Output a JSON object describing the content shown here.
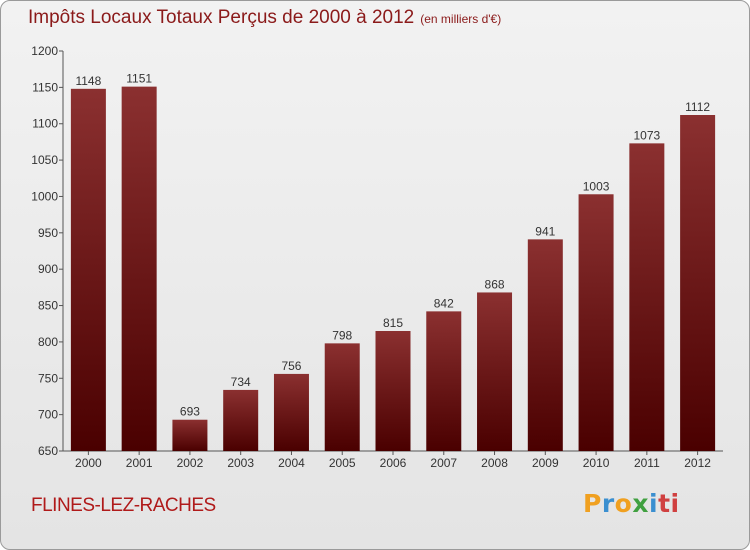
{
  "chart_data": {
    "type": "bar",
    "title": "Impôts Locaux Totaux Perçus de 2000 à 2012",
    "subtitle": "(en milliers d'€)",
    "categories": [
      "2000",
      "2001",
      "2002",
      "2003",
      "2004",
      "2005",
      "2006",
      "2007",
      "2008",
      "2009",
      "2010",
      "2011",
      "2012"
    ],
    "values": [
      1148,
      1151,
      693,
      734,
      756,
      798,
      815,
      842,
      868,
      941,
      1003,
      1073,
      1112
    ],
    "yticks": [
      650,
      700,
      750,
      800,
      850,
      900,
      950,
      1000,
      1050,
      1100,
      1150,
      1200
    ],
    "ylim": [
      650,
      1200
    ],
    "xlabel": "",
    "ylabel": "",
    "grid": false,
    "bar_color_top": "#8b3030",
    "bar_color_bottom": "#4a0000"
  },
  "location": "FLINES-LEZ-RACHES",
  "logo": {
    "text": "Proxiti",
    "letters": [
      "P",
      "r",
      "o",
      "x",
      "i",
      "ti"
    ]
  }
}
